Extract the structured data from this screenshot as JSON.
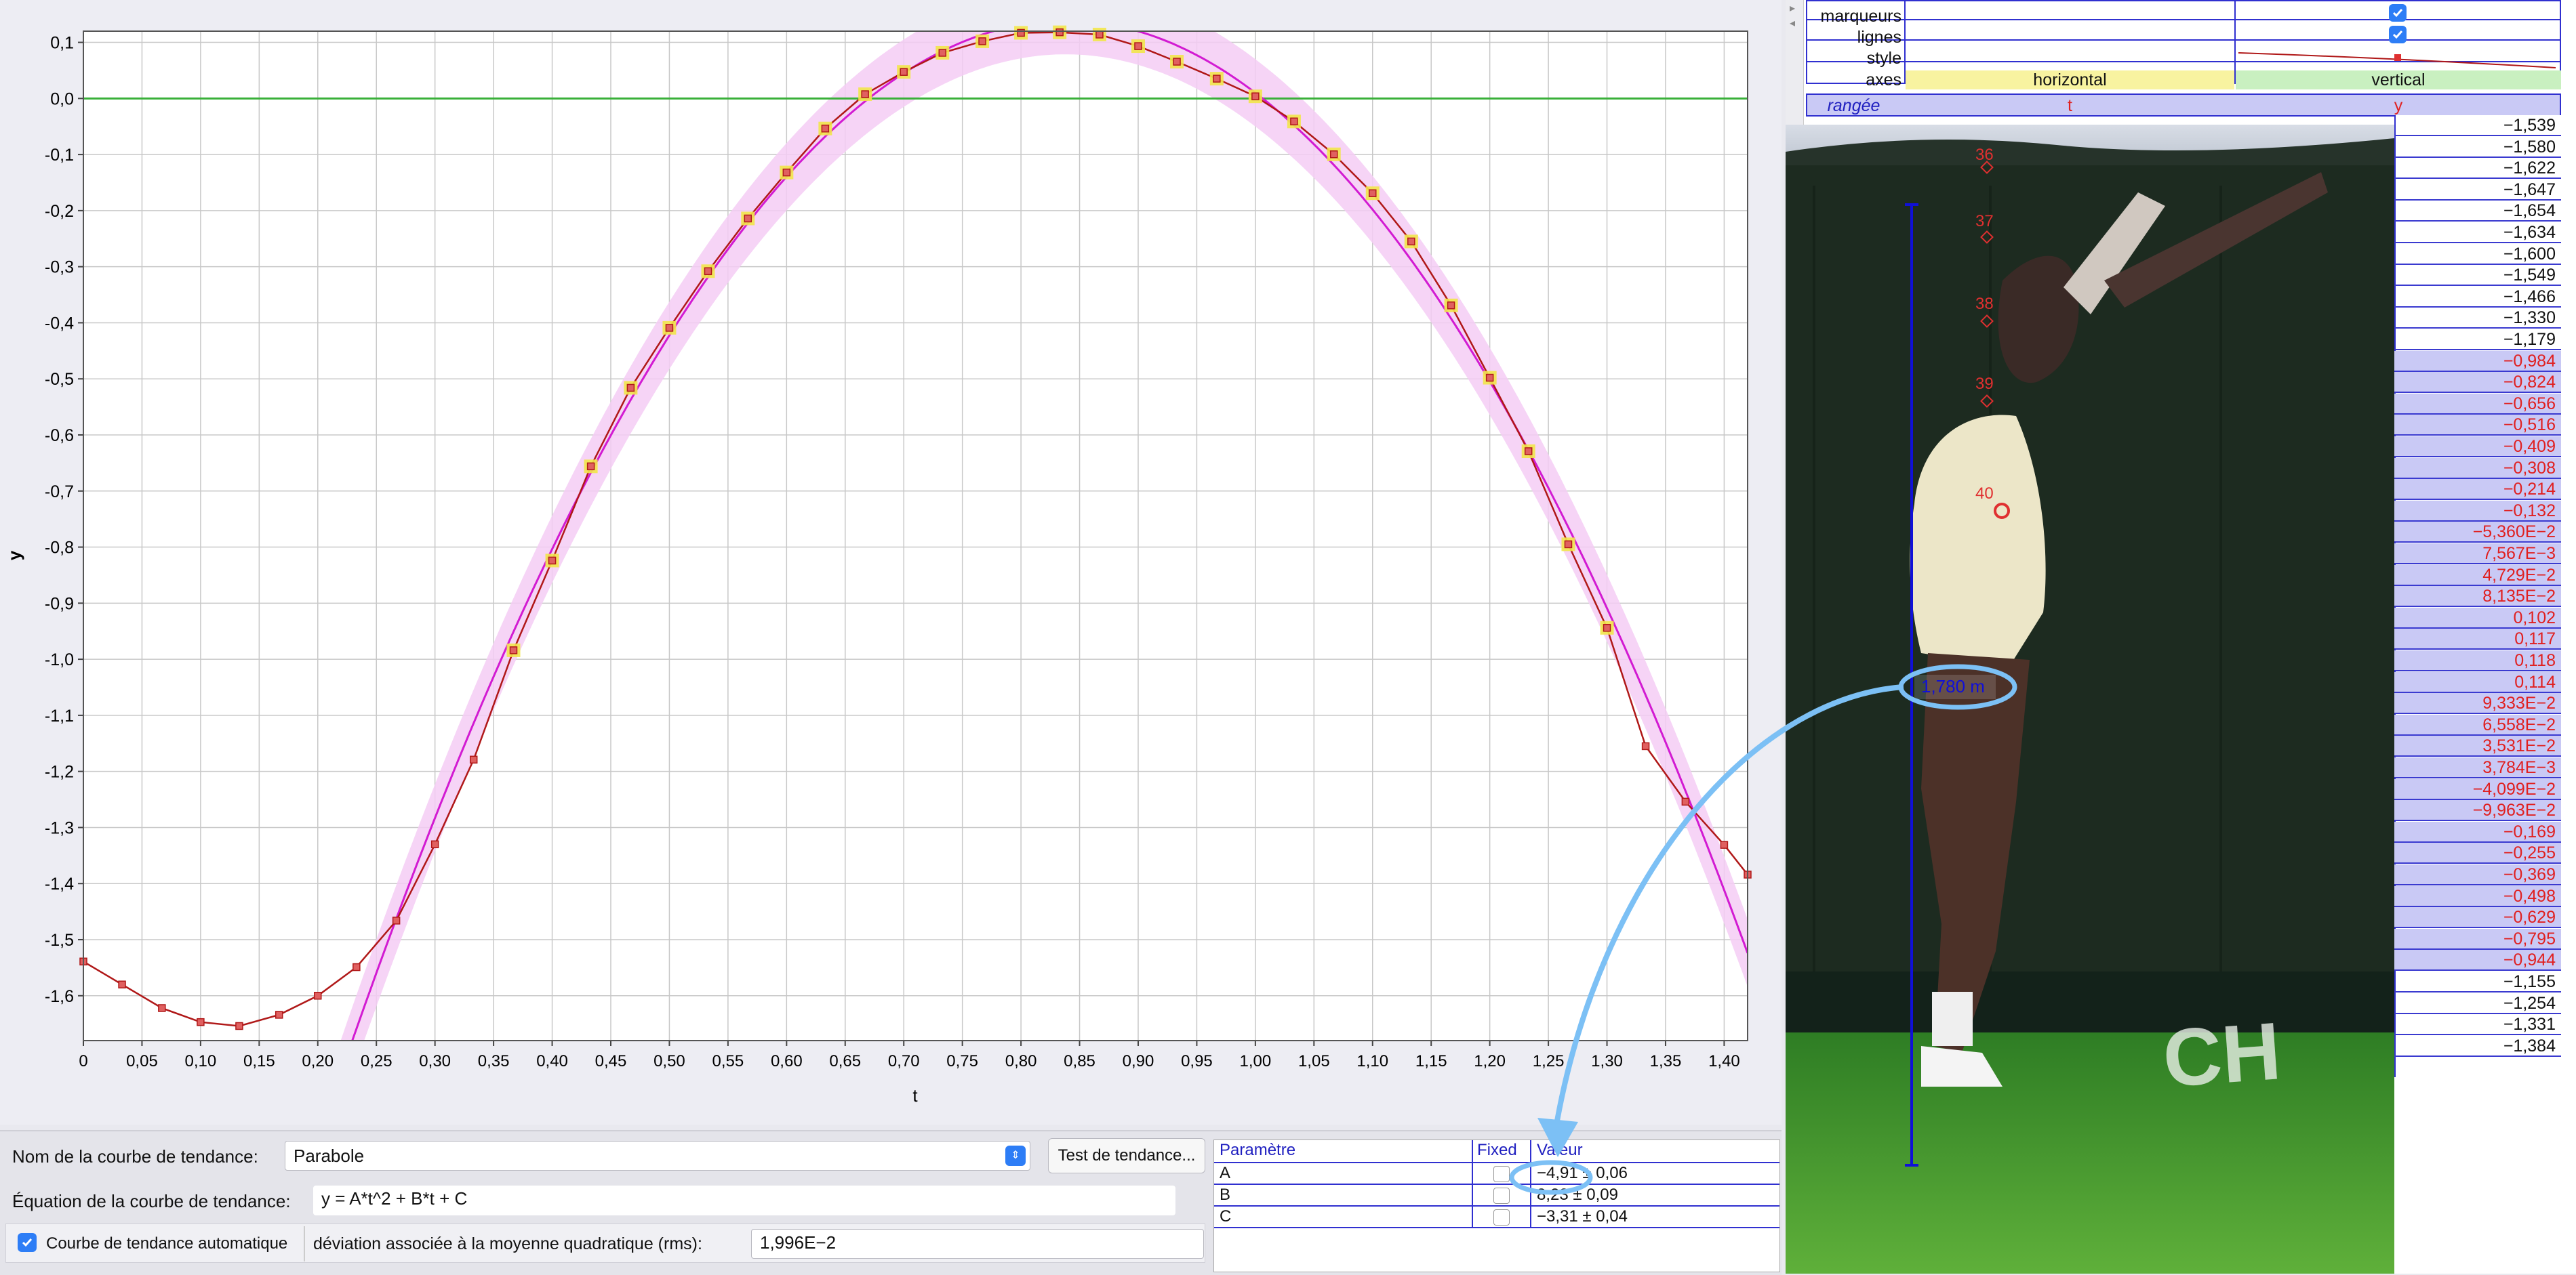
{
  "chart_data": {
    "type": "scatter",
    "xlabel": "t",
    "ylabel": "y",
    "xlim": [
      0,
      1.42
    ],
    "ylim": [
      -1.68,
      0.12
    ],
    "x_ticks": [
      "0",
      "0,05",
      "0,10",
      "0,15",
      "0,20",
      "0,25",
      "0,30",
      "0,35",
      "0,40",
      "0,45",
      "0,50",
      "0,55",
      "0,60",
      "0,65",
      "0,70",
      "0,75",
      "0,80",
      "0,85",
      "0,90",
      "0,95",
      "1,00",
      "1,05",
      "1,10",
      "1,15",
      "1,20",
      "1,25",
      "1,30",
      "1,35",
      "1,40"
    ],
    "y_ticks": [
      "0,1",
      "0,0",
      "-0,1",
      "-0,2",
      "-0,3",
      "-0,4",
      "-0,5",
      "-0,6",
      "-0,7",
      "-0,8",
      "-0,9",
      "-1,0",
      "-1,1",
      "-1,2",
      "-1,3",
      "-1,4",
      "-1,5",
      "-1,6"
    ],
    "grid": true,
    "series": [
      {
        "name": "y",
        "x": [
          0,
          0.033,
          0.067,
          0.1,
          0.133,
          0.167,
          0.2,
          0.233,
          0.267,
          0.3,
          0.333,
          0.367,
          0.4,
          0.433,
          0.467,
          0.5,
          0.533,
          0.567,
          0.6,
          0.633,
          0.667,
          0.7,
          0.733,
          0.767,
          0.8,
          0.833,
          0.867,
          0.9,
          0.933,
          0.967,
          1.0,
          1.033,
          1.067,
          1.1,
          1.133,
          1.167,
          1.2,
          1.233,
          1.267,
          1.3,
          1.333,
          1.367,
          1.4,
          1.42
        ],
        "y": [
          -1.539,
          -1.58,
          -1.622,
          -1.647,
          -1.654,
          -1.634,
          -1.6,
          -1.549,
          -1.466,
          -1.33,
          -1.179,
          -0.984,
          -0.824,
          -0.656,
          -0.516,
          -0.409,
          -0.308,
          -0.214,
          -0.132,
          -0.0536,
          0.00757,
          0.0473,
          0.0814,
          0.102,
          0.117,
          0.118,
          0.114,
          0.0933,
          0.0656,
          0.0353,
          0.00378,
          -0.041,
          -0.0996,
          -0.169,
          -0.255,
          -0.369,
          -0.498,
          -0.629,
          -0.795,
          -0.944,
          -1.155,
          -1.254,
          -1.331,
          -1.384
        ],
        "highlight_from": 11,
        "highlight_to": 39
      },
      {
        "name": "Parabole",
        "type": "fit",
        "A": -4.91,
        "B": 8.23,
        "C": -3.31
      }
    ]
  },
  "bottom": {
    "trend_name_label": "Nom de la courbe de tendance:",
    "trend_name_value": "Parabole",
    "test_button": "Test de tendance...",
    "equation_label": "Équation de la courbe de tendance:",
    "equation_value": "y = A*t^2 + B*t + C",
    "auto_label": "Courbe de tendance automatique",
    "rms_label": "déviation associée à la moyenne quadratique (rms):",
    "rms_value": "1,996E−2"
  },
  "params": {
    "headers": [
      "Paramètre",
      "Fixed",
      "Valeur"
    ],
    "rows": [
      {
        "name": "A",
        "value": "−4,91 ± 0,06"
      },
      {
        "name": "B",
        "value": "8,23 ± 0,09"
      },
      {
        "name": "C",
        "value": "−3,31 ± 0,04"
      }
    ]
  },
  "props": {
    "markers_label": "marqueurs",
    "lines_label": "lignes",
    "style_label": "style",
    "axes_label": "axes",
    "axes_h": "horizontal",
    "axes_v": "vertical",
    "col_range": "rangée",
    "col_t": "t",
    "col_y": "y"
  },
  "y_column": [
    "−1,539",
    "−1,580",
    "−1,622",
    "−1,647",
    "−1,654",
    "−1,634",
    "−1,600",
    "−1,549",
    "−1,466",
    "−1,330",
    "−1,179",
    "−0,984",
    "−0,824",
    "−0,656",
    "−0,516",
    "−0,409",
    "−0,308",
    "−0,214",
    "−0,132",
    "−5,360E−2",
    "7,567E−3",
    "4,729E−2",
    "8,135E−2",
    "0,102",
    "0,117",
    "0,118",
    "0,114",
    "9,333E−2",
    "6,558E−2",
    "3,531E−2",
    "3,784E−3",
    "−4,099E−2",
    "−9,963E−2",
    "−0,169",
    "−0,255",
    "−0,369",
    "−0,498",
    "−0,629",
    "−0,795",
    "−0,944",
    "−1,155",
    "−1,254",
    "−1,331",
    "−1,384"
  ],
  "video": {
    "length_label": "1,780 m",
    "frame_labels": [
      "36",
      "37",
      "38",
      "39",
      "40"
    ],
    "banner_text": "CH"
  },
  "colors": {
    "marker_fill": "#f2e64a",
    "data_line": "#b01818",
    "fit_line": "#d21bd2",
    "band": "#f5cdf5",
    "zero_line": "#39b039",
    "selection": "#c9c9f5",
    "annotation": "#7cc0f5"
  }
}
